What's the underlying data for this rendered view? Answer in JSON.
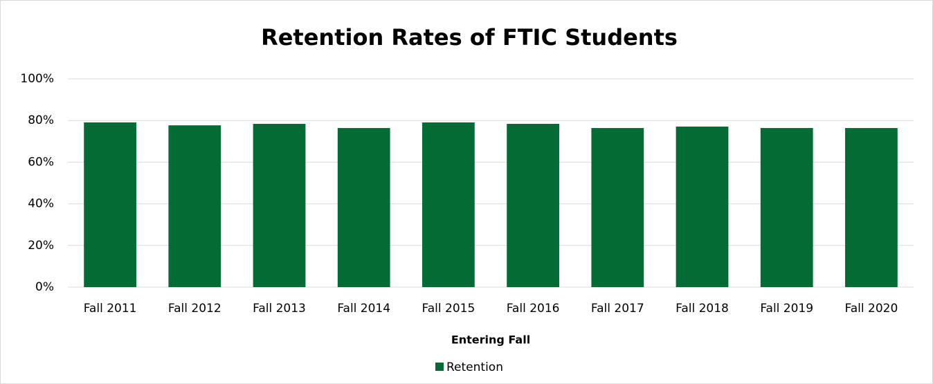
{
  "chart_data": {
    "type": "bar",
    "title": "Retention Rates of FTIC Students",
    "x_label": "Entering Fall",
    "categories": [
      "Fall 2011",
      "Fall 2012",
      "Fall 2013",
      "Fall 2014",
      "Fall 2015",
      "Fall 2016",
      "Fall 2017",
      "Fall 2018",
      "Fall 2019",
      "Fall 2020"
    ],
    "series": [
      {
        "name": "Retention",
        "color": "#036b34",
        "values": [
          79.1,
          77.7,
          78.4,
          76.4,
          79.1,
          78.4,
          76.4,
          77.1,
          76.4,
          76.4
        ]
      }
    ],
    "ylim": [
      0,
      100
    ],
    "yticks": [
      {
        "value": 0,
        "label": "0%"
      },
      {
        "value": 20,
        "label": "20%"
      },
      {
        "value": 40,
        "label": "40%"
      },
      {
        "value": 60,
        "label": "60%"
      },
      {
        "value": 80,
        "label": "80%"
      },
      {
        "value": 100,
        "label": "100%"
      }
    ],
    "grid": true,
    "legend": "bottom"
  }
}
